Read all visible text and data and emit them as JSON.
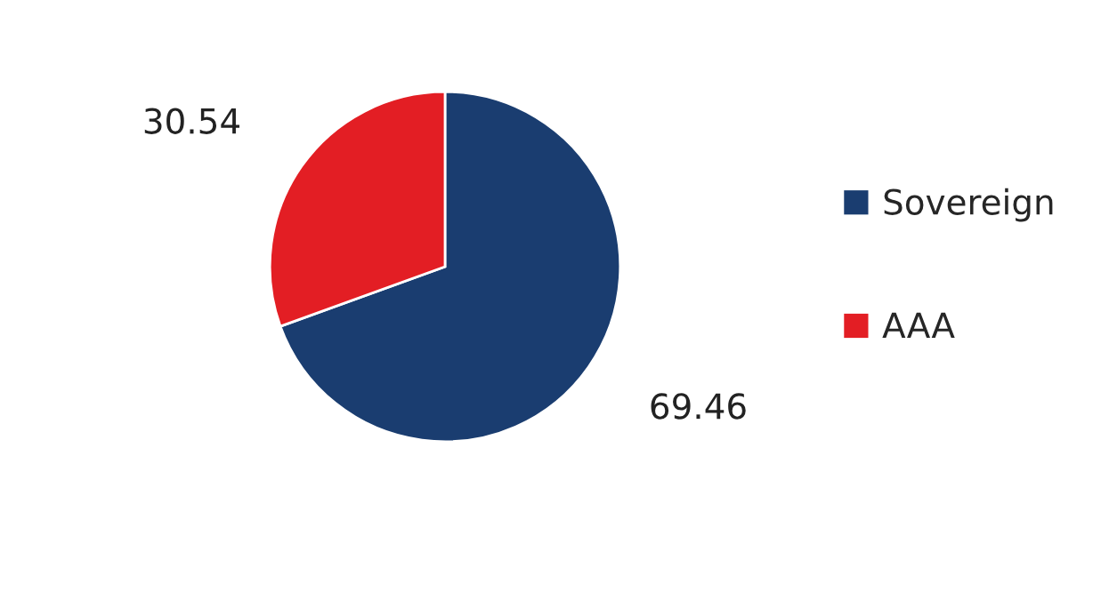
{
  "chart_data": {
    "type": "pie",
    "categories": [
      "Sovereign",
      "AAA"
    ],
    "values": [
      69.46,
      30.54
    ],
    "colors": [
      "#1a3d70",
      "#e31e24"
    ],
    "data_labels": true,
    "legend": "right"
  }
}
